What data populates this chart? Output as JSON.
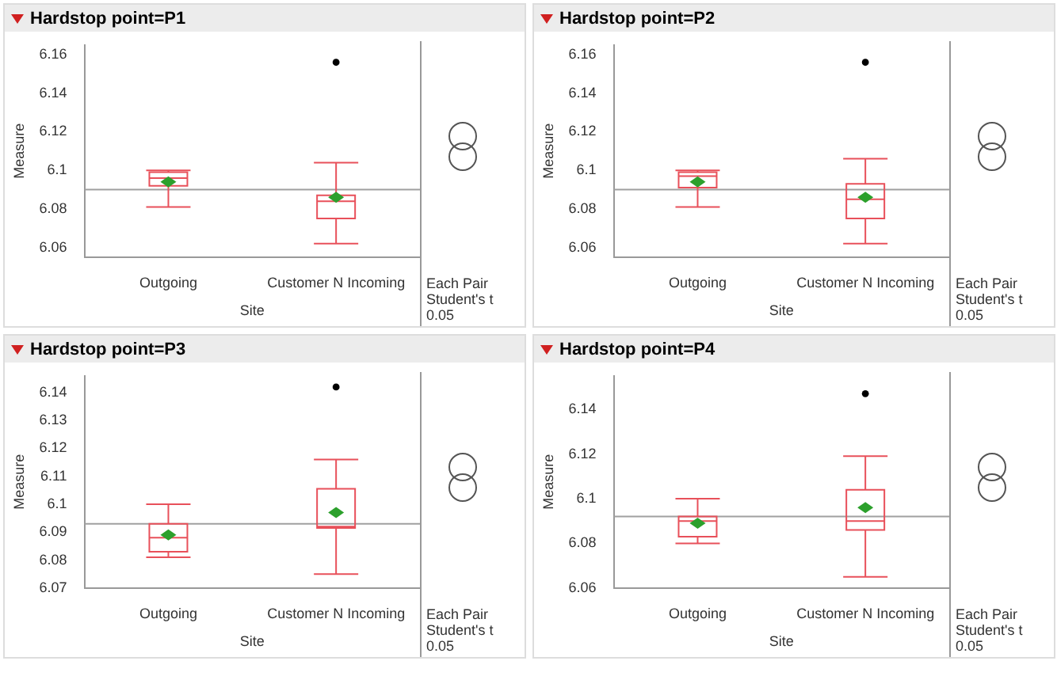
{
  "chart_data": [
    {
      "type": "box",
      "title": "Hardstop point=P1",
      "xlabel": "Site",
      "ylabel": "Measure",
      "categories": [
        "Outgoing",
        "Customer N Incoming"
      ],
      "boxes": [
        {
          "low": 6.081,
          "q1": 6.092,
          "median": 6.096,
          "q3": 6.099,
          "high": 6.1,
          "mean": 6.094
        },
        {
          "low": 6.062,
          "q1": 6.075,
          "median": 6.084,
          "q3": 6.087,
          "high": 6.104,
          "mean": 6.086,
          "outliers": [
            6.156
          ]
        }
      ],
      "ylim": [
        6.055,
        6.165
      ],
      "yticks": [
        6.06,
        6.08,
        6.1,
        6.12,
        6.14,
        6.16
      ],
      "ref_lines": [
        {
          "axis": "y",
          "value": 6.09,
          "color": "#a0a0a0"
        }
      ],
      "annotations": [
        "Each Pair\nStudent's t\n0.05"
      ]
    },
    {
      "type": "box",
      "title": "Hardstop point=P2",
      "xlabel": "Site",
      "ylabel": "Measure",
      "categories": [
        "Outgoing",
        "Customer N Incoming"
      ],
      "boxes": [
        {
          "low": 6.081,
          "q1": 6.091,
          "median": 6.097,
          "q3": 6.099,
          "high": 6.1,
          "mean": 6.094
        },
        {
          "low": 6.062,
          "q1": 6.075,
          "median": 6.085,
          "q3": 6.093,
          "high": 6.106,
          "mean": 6.086,
          "outliers": [
            6.156
          ]
        }
      ],
      "ylim": [
        6.055,
        6.165
      ],
      "yticks": [
        6.06,
        6.08,
        6.1,
        6.12,
        6.14,
        6.16
      ],
      "ref_lines": [
        {
          "axis": "y",
          "value": 6.09,
          "color": "#a0a0a0"
        }
      ],
      "annotations": [
        "Each Pair\nStudent's t\n0.05"
      ]
    },
    {
      "type": "box",
      "title": "Hardstop point=P3",
      "xlabel": "Site",
      "ylabel": "Measure",
      "categories": [
        "Outgoing",
        "Customer N Incoming"
      ],
      "boxes": [
        {
          "low": 6.081,
          "q1": 6.083,
          "median": 6.088,
          "q3": 6.093,
          "high": 6.1,
          "mean": 6.089
        },
        {
          "low": 6.075,
          "q1": 6.0915,
          "median": 6.092,
          "q3": 6.1055,
          "high": 6.116,
          "mean": 6.097,
          "outliers": [
            6.142
          ]
        }
      ],
      "ylim": [
        6.07,
        6.146
      ],
      "yticks": [
        6.07,
        6.08,
        6.09,
        6.1,
        6.11,
        6.12,
        6.13,
        6.14
      ],
      "ref_lines": [
        {
          "axis": "y",
          "value": 6.093,
          "color": "#a0a0a0"
        }
      ],
      "annotations": [
        "Each Pair\nStudent's t\n0.05"
      ]
    },
    {
      "type": "box",
      "title": "Hardstop point=P4",
      "xlabel": "Site",
      "ylabel": "Measure",
      "categories": [
        "Outgoing",
        "Customer N Incoming"
      ],
      "boxes": [
        {
          "low": 6.08,
          "q1": 6.083,
          "median": 6.09,
          "q3": 6.092,
          "high": 6.1,
          "mean": 6.089
        },
        {
          "low": 6.065,
          "q1": 6.086,
          "median": 6.09,
          "q3": 6.104,
          "high": 6.119,
          "mean": 6.096,
          "outliers": [
            6.147
          ]
        }
      ],
      "ylim": [
        6.06,
        6.155
      ],
      "yticks": [
        6.06,
        6.08,
        6.1,
        6.12,
        6.14
      ],
      "ref_lines": [
        {
          "axis": "y",
          "value": 6.092,
          "color": "#a0a0a0"
        }
      ],
      "annotations": [
        "Each Pair\nStudent's t\n0.05"
      ]
    }
  ]
}
